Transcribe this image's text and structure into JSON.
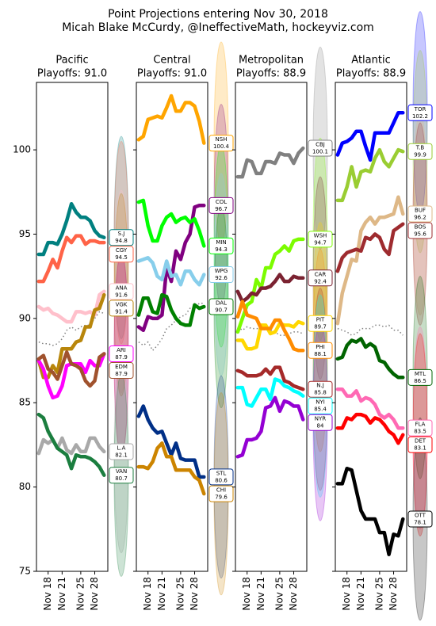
{
  "title": "Point Projections entering Nov 30, 2018",
  "subtitle": "Micah Blake McCurdy, @IneffectiveMath, hockeyviz.com",
  "chart_data": [
    {
      "type": "line",
      "title": "Pacific",
      "subtitle": "Playoffs: 91.0",
      "x": [
        16,
        17,
        18,
        19,
        20,
        21,
        22,
        23,
        24,
        25,
        26,
        27,
        28,
        29,
        30
      ],
      "xlim": [
        15.5,
        30.8
      ],
      "xticks": [
        {
          "value": 18,
          "label": "Nov 18"
        },
        {
          "value": 21,
          "label": "Nov 21"
        },
        {
          "value": 25,
          "label": "Nov 25"
        },
        {
          "value": 28,
          "label": "Nov 28"
        }
      ],
      "ylim": [
        75,
        104
      ],
      "yticks": [
        75,
        80,
        85,
        90,
        95,
        100
      ],
      "playoff_line": {
        "color": "#808080",
        "values": [
          88.6,
          88.5,
          88.5,
          88.4,
          88.5,
          88.8,
          89.3,
          89.5,
          89.3,
          89.5,
          89.6,
          89.6,
          90.0,
          90.4,
          90.3
        ]
      },
      "series": [
        {
          "name": "S.J",
          "color": "#008080",
          "values": [
            93.8,
            93.8,
            94.5,
            94.5,
            94.4,
            95.0,
            95.8,
            96.8,
            96.3,
            96.0,
            96.0,
            95.8,
            95.2,
            94.9,
            94.8
          ]
        },
        {
          "name": "CGY",
          "color": "#ff6347",
          "values": [
            92.2,
            92.2,
            92.8,
            93.5,
            93.0,
            94.0,
            94.8,
            94.5,
            94.9,
            94.9,
            94.4,
            94.6,
            94.6,
            94.5,
            94.5
          ]
        },
        {
          "name": "ANA",
          "color": "#ffc0cb",
          "values": [
            90.7,
            90.5,
            90.6,
            90.3,
            90.2,
            90.0,
            89.8,
            89.8,
            90.4,
            90.4,
            90.3,
            90.4,
            90.2,
            91.4,
            91.6
          ]
        },
        {
          "name": "VGK",
          "color": "#b8860b",
          "values": [
            87.5,
            86.5,
            86.5,
            87.2,
            86.8,
            88.2,
            88.2,
            88.2,
            88.6,
            88.7,
            89.5,
            89.5,
            90.5,
            90.6,
            91.4
          ]
        },
        {
          "name": "ARI",
          "color": "#ff00ff",
          "values": [
            87.5,
            87.0,
            86.0,
            85.3,
            85.4,
            86.0,
            87.2,
            87.3,
            87.3,
            87.3,
            86.8,
            87.5,
            87.2,
            87.2,
            87.9
          ]
        },
        {
          "name": "EDM",
          "color": "#a0522d",
          "values": [
            87.6,
            87.8,
            87.0,
            86.8,
            86.4,
            87.2,
            88.0,
            87.3,
            87.2,
            87.0,
            86.3,
            86.0,
            86.3,
            87.7,
            87.9
          ]
        },
        {
          "name": "L.A",
          "color": "#a9a9a9",
          "values": [
            82.0,
            82.8,
            82.6,
            82.8,
            82.3,
            82.9,
            82.2,
            82.0,
            82.5,
            82.1,
            82.1,
            82.9,
            82.9,
            82.4,
            82.1
          ]
        },
        {
          "name": "VAN",
          "color": "#1b7e3f",
          "values": [
            84.3,
            84.1,
            83.3,
            82.8,
            82.3,
            82.1,
            81.9,
            81.1,
            81.9,
            81.8,
            81.8,
            81.7,
            81.5,
            81.2,
            80.7
          ]
        }
      ]
    },
    {
      "type": "line",
      "title": "Central",
      "subtitle": "Playoffs: 91.0",
      "x": [
        16,
        17,
        18,
        19,
        20,
        21,
        22,
        23,
        24,
        25,
        26,
        27,
        28,
        29,
        30
      ],
      "xlim": [
        15.5,
        30.8
      ],
      "xticks": [
        {
          "value": 18,
          "label": "Nov 18"
        },
        {
          "value": 21,
          "label": "Nov 21"
        },
        {
          "value": 25,
          "label": "Nov 25"
        },
        {
          "value": 28,
          "label": "Nov 28"
        }
      ],
      "playoff_line": {
        "color": "#808080",
        "values": [
          88.6,
          88.4,
          88.6,
          88.1,
          88.4,
          88.8,
          89.4,
          89.6,
          89.9,
          90.1,
          90.2,
          90.6,
          90.6,
          90.9,
          90.9
        ]
      },
      "series": [
        {
          "name": "NSH",
          "color": "#ffa500",
          "values": [
            100.6,
            100.8,
            101.8,
            101.9,
            102.0,
            101.9,
            102.5,
            103.2,
            102.3,
            102.3,
            102.8,
            102.8,
            102.6,
            101.7,
            100.4
          ]
        },
        {
          "name": "COL",
          "color": "#800080",
          "values": [
            89.5,
            89.3,
            90.1,
            90.0,
            90.0,
            90.2,
            93.0,
            92.2,
            94.0,
            93.5,
            94.5,
            95.0,
            96.6,
            96.7,
            96.7
          ]
        },
        {
          "name": "MIN",
          "color": "#00ff00",
          "values": [
            96.9,
            97.0,
            95.5,
            94.6,
            94.6,
            95.5,
            96.0,
            96.2,
            95.7,
            95.9,
            96.0,
            95.7,
            95.9,
            95.2,
            94.3
          ]
        },
        {
          "name": "WPG",
          "color": "#87ceeb",
          "values": [
            93.4,
            93.5,
            93.6,
            93.3,
            92.5,
            92.3,
            93.4,
            92.5,
            92.6,
            92.0,
            92.8,
            92.8,
            92.3,
            92.0,
            92.6
          ]
        },
        {
          "name": "DAL",
          "color": "#008000",
          "values": [
            90.2,
            91.2,
            91.2,
            90.4,
            90.3,
            91.4,
            91.3,
            90.5,
            90.0,
            89.7,
            89.6,
            89.6,
            90.8,
            90.6,
            90.7
          ]
        },
        {
          "name": "STL",
          "color": "#002f87",
          "values": [
            84.2,
            84.8,
            84.0,
            83.5,
            83.2,
            83.3,
            82.6,
            81.9,
            82.6,
            81.7,
            81.6,
            81.6,
            81.6,
            80.6,
            80.6
          ]
        },
        {
          "name": "CHI",
          "color": "#cc8400",
          "values": [
            81.2,
            81.2,
            81.1,
            81.5,
            82.3,
            82.6,
            81.8,
            81.8,
            81.0,
            81.0,
            81.0,
            81.0,
            80.6,
            80.4,
            79.6
          ]
        }
      ]
    },
    {
      "type": "line",
      "title": "Metropolitan",
      "subtitle": "Playoffs: 88.9",
      "x": [
        16,
        17,
        18,
        19,
        20,
        21,
        22,
        23,
        24,
        25,
        26,
        27,
        28,
        29,
        30
      ],
      "xlim": [
        15.5,
        30.8
      ],
      "xticks": [
        {
          "value": 18,
          "label": "Nov 18"
        },
        {
          "value": 21,
          "label": "Nov 21"
        },
        {
          "value": 25,
          "label": "Nov 25"
        },
        {
          "value": 28,
          "label": "Nov 28"
        }
      ],
      "playoff_line": {
        "color": "#808080",
        "values": [
          89.5,
          89.3,
          89.5,
          89.4,
          89.4,
          89.4,
          89.3,
          89.3,
          89.2,
          89.0,
          89.0,
          89.1,
          89.2,
          89.2,
          89.1
        ]
      },
      "series": [
        {
          "name": "CBJ",
          "color": "#808080",
          "values": [
            98.4,
            98.4,
            99.4,
            99.3,
            98.6,
            98.6,
            99.3,
            99.3,
            99.2,
            99.8,
            99.7,
            99.7,
            99.2,
            99.8,
            100.1
          ]
        },
        {
          "name": "WSH",
          "color": "#7cfc00",
          "values": [
            89.2,
            90.0,
            90.8,
            91.0,
            92.3,
            91.8,
            93.0,
            93.0,
            93.8,
            94.0,
            94.3,
            94.0,
            94.6,
            94.7,
            94.7
          ]
        },
        {
          "name": "CAR",
          "color": "#7b2231",
          "values": [
            91.6,
            91.0,
            91.2,
            91.5,
            91.4,
            91.8,
            91.8,
            91.9,
            92.2,
            92.6,
            92.2,
            92.2,
            92.5,
            92.4,
            92.4
          ]
        },
        {
          "name": "PIT",
          "color": "#ffd700",
          "values": [
            88.7,
            88.7,
            88.2,
            88.2,
            88.3,
            89.6,
            89.6,
            89.1,
            89.2,
            89.7,
            89.6,
            89.6,
            89.5,
            89.8,
            89.7
          ]
        },
        {
          "name": "PHI",
          "color": "#ff8c00",
          "values": [
            90.1,
            91.0,
            90.2,
            90.1,
            90.0,
            89.4,
            89.4,
            89.4,
            89.9,
            89.9,
            89.3,
            88.8,
            88.2,
            88.1,
            88.1
          ]
        },
        {
          "name": "N.J",
          "color": "#a52a2a",
          "values": [
            86.9,
            86.8,
            86.6,
            86.6,
            86.6,
            86.7,
            87.0,
            86.7,
            87.1,
            87.1,
            86.3,
            86.2,
            86.0,
            85.9,
            85.8
          ]
        },
        {
          "name": "NYI",
          "color": "#00ffff",
          "values": [
            85.9,
            85.9,
            84.9,
            84.8,
            85.3,
            85.8,
            85.8,
            85.2,
            86.4,
            86.3,
            86.0,
            85.9,
            85.7,
            85.6,
            85.4
          ]
        },
        {
          "name": "NYR",
          "color": "#9400d3",
          "values": [
            81.8,
            81.9,
            82.8,
            82.8,
            82.9,
            83.3,
            84.7,
            84.8,
            85.3,
            84.5,
            85.1,
            85.0,
            84.8,
            84.8,
            84.0
          ]
        }
      ]
    },
    {
      "type": "line",
      "title": "Atlantic",
      "subtitle": "Playoffs: 88.9",
      "x": [
        16,
        17,
        18,
        19,
        20,
        21,
        22,
        23,
        24,
        25,
        26,
        27,
        28,
        29,
        30
      ],
      "xlim": [
        15.5,
        30.8
      ],
      "xticks": [
        {
          "value": 18,
          "label": "Nov 18"
        },
        {
          "value": 21,
          "label": "Nov 21"
        },
        {
          "value": 25,
          "label": "Nov 25"
        },
        {
          "value": 28,
          "label": "Nov 28"
        }
      ],
      "playoff_line": {
        "color": "#808080",
        "values": [
          89.4,
          89.3,
          89.2,
          89.0,
          89.1,
          89.4,
          89.4,
          89.4,
          89.6,
          89.6,
          89.5,
          89.6,
          89.3,
          89.3,
          89.0
        ]
      },
      "series": [
        {
          "name": "TOR",
          "color": "#0000ff",
          "values": [
            99.7,
            100.4,
            100.5,
            100.7,
            101.1,
            101.1,
            100.2,
            99.4,
            101.0,
            101.0,
            101.0,
            101.0,
            101.6,
            102.2,
            102.2
          ]
        },
        {
          "name": "T.B",
          "color": "#9acd32",
          "values": [
            97.0,
            97.0,
            97.8,
            99.0,
            97.8,
            98.7,
            98.8,
            98.7,
            99.5,
            100.0,
            99.3,
            99.0,
            99.5,
            100.0,
            99.9
          ]
        },
        {
          "name": "BUF",
          "color": "#deb887",
          "values": [
            89.7,
            91.5,
            92.5,
            93.5,
            93.4,
            95.2,
            95.7,
            96.0,
            95.6,
            96.0,
            96.0,
            96.1,
            96.2,
            97.2,
            96.2
          ]
        },
        {
          "name": "BOS",
          "color": "#9e2b2f",
          "values": [
            92.8,
            93.6,
            93.9,
            94.0,
            94.1,
            94.0,
            94.8,
            94.7,
            95.0,
            94.8,
            94.1,
            93.8,
            95.2,
            95.4,
            95.6
          ]
        },
        {
          "name": "MTL",
          "color": "#006400",
          "values": [
            87.6,
            87.7,
            88.4,
            88.7,
            88.6,
            88.8,
            88.3,
            88.5,
            88.3,
            87.5,
            87.4,
            87.0,
            86.7,
            86.5,
            86.5
          ]
        },
        {
          "name": "FLA",
          "color": "#ff69b4",
          "values": [
            85.8,
            85.8,
            85.4,
            85.4,
            85.7,
            85.1,
            85.3,
            85.2,
            84.9,
            84.3,
            84.1,
            84.3,
            84.0,
            83.5,
            83.5
          ]
        },
        {
          "name": "DET",
          "color": "#ff0000",
          "values": [
            83.5,
            83.5,
            84.1,
            84.0,
            84.3,
            84.3,
            84.2,
            83.8,
            84.1,
            84.0,
            83.7,
            83.3,
            83.1,
            82.6,
            83.1
          ]
        },
        {
          "name": "OTT",
          "color": "#000000",
          "values": [
            80.2,
            80.2,
            81.1,
            81.0,
            79.8,
            78.6,
            78.1,
            78.1,
            78.1,
            77.3,
            77.3,
            76.0,
            77.2,
            77.1,
            78.1
          ]
        }
      ]
    }
  ]
}
